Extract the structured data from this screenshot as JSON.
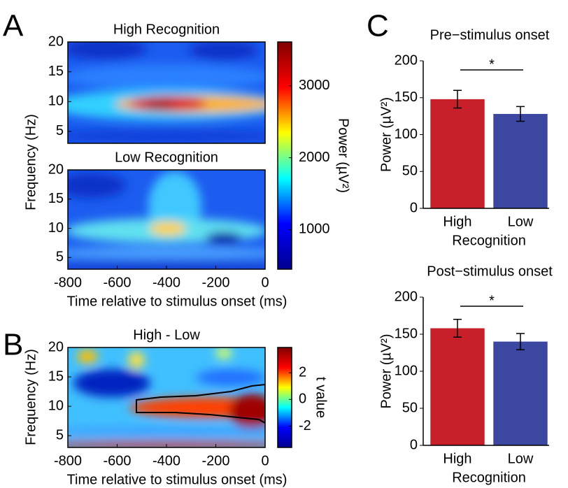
{
  "panel_labels": [
    "A",
    "B",
    "C"
  ],
  "chart_data": [
    {
      "type": "heatmap",
      "title": "High Recognition",
      "ylabel": "Frequency (Hz)",
      "xlim": [
        -800,
        0
      ],
      "ylim": [
        3,
        20
      ],
      "yticks": [
        5,
        10,
        15,
        20
      ]
    },
    {
      "type": "heatmap",
      "title": "Low Recognition",
      "xlabel": "Time relative to stimulus onset (ms)",
      "xlim": [
        -800,
        0
      ],
      "xticks": [
        -800,
        -600,
        -400,
        -200,
        0
      ],
      "ylim": [
        3,
        20
      ],
      "yticks": [
        5,
        10,
        15,
        20
      ]
    },
    {
      "type": "colorbar",
      "label": "Power (µV²)",
      "colormap": "jet",
      "lim": [
        450,
        3610
      ],
      "ticks": [
        1000,
        2000,
        3000
      ]
    },
    {
      "type": "heatmap",
      "title": "High - Low",
      "ylabel": "Frequency (Hz)",
      "xlabel": "Time relative to stimulus onset (ms)",
      "xlim": [
        -800,
        0
      ],
      "xticks": [
        -800,
        -600,
        -400,
        -200,
        0
      ],
      "ylim": [
        3,
        20
      ],
      "yticks": [
        5,
        10,
        15,
        20
      ]
    },
    {
      "type": "colorbar",
      "label": "t value",
      "colormap": "jet",
      "lim": [
        -3.6,
        3.9
      ],
      "ticks": [
        -2,
        0,
        2
      ]
    },
    {
      "type": "bar",
      "title": "Pre−stimulus onset",
      "ylabel": "Power (µV²)",
      "xlabel": "Recognition",
      "categories": [
        "High",
        "Low"
      ],
      "values": [
        148,
        128
      ],
      "errors": [
        12,
        10
      ],
      "colors": [
        "#c8202a",
        "#3b47a0"
      ],
      "ylim": [
        0,
        200
      ],
      "yticks": [
        0,
        50,
        100,
        150,
        200
      ],
      "significance": "*"
    },
    {
      "type": "bar",
      "title": "Post−stimulus onset",
      "ylabel": "Power (µV²)",
      "xlabel": "Recognition",
      "categories": [
        "High",
        "Low"
      ],
      "values": [
        158,
        140
      ],
      "errors": [
        12,
        11
      ],
      "colors": [
        "#c8202a",
        "#3b47a0"
      ],
      "ylim": [
        0,
        200
      ],
      "yticks": [
        0,
        50,
        100,
        150,
        200
      ],
      "significance": "*"
    }
  ]
}
